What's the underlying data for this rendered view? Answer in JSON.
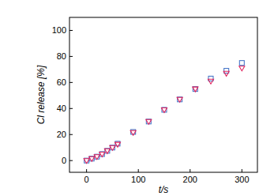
{
  "chart_data": {
    "type": "scatter",
    "x_label": "t/s",
    "y_label": "Cl release [%]",
    "x": [
      0,
      10,
      20,
      30,
      40,
      50,
      60,
      90,
      120,
      150,
      180,
      210,
      240,
      270,
      300
    ],
    "series": [
      {
        "color": "#4a78c8",
        "marker": "square",
        "values": [
          0,
          1.5,
          3,
          5,
          7.5,
          10,
          13,
          22,
          30,
          39,
          47,
          55,
          63,
          69,
          75
        ]
      },
      {
        "color": "#e0245e",
        "marker": "triangle-down",
        "values": [
          0,
          1.5,
          3,
          5,
          7.5,
          10,
          12.5,
          21.5,
          30,
          39,
          47,
          55,
          61,
          67,
          71
        ]
      }
    ],
    "xlim": [
      -33,
      330
    ],
    "ylim": [
      -9,
      110
    ],
    "xticks": [
      0,
      100,
      200,
      300
    ],
    "yticks": [
      0,
      20,
      40,
      60,
      80,
      100
    ],
    "grid": false
  }
}
